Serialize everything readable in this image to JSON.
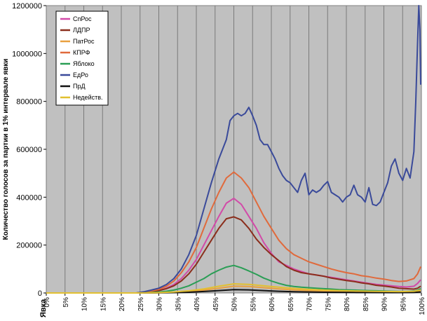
{
  "chart_data": {
    "type": "line",
    "ylabel": "Количество голосов за партии в 1% интервале явки",
    "xlabel": "Явка",
    "ylim": [
      0,
      1200000
    ],
    "xlim": [
      0,
      100
    ],
    "y_ticks": [
      "0",
      "200000",
      "400000",
      "600000",
      "800000",
      "1000000",
      "1200000"
    ],
    "x_ticks": [
      "0%",
      "5%",
      "10%",
      "15%",
      "20%",
      "25%",
      "30%",
      "35%",
      "40%",
      "45%",
      "50%",
      "55%",
      "60%",
      "65%",
      "70%",
      "75%",
      "80%",
      "85%",
      "90%",
      "95%",
      "100%"
    ],
    "grid": "vertical",
    "legend_position": "top-left",
    "series": [
      {
        "name": "СпРос",
        "color": "#d24aa8",
        "x": [
          0,
          24,
          26,
          28,
          30,
          32,
          34,
          36,
          38,
          40,
          42,
          44,
          46,
          48,
          50,
          52,
          54,
          56,
          58,
          60,
          62,
          64,
          66,
          68,
          70,
          72,
          74,
          76,
          78,
          80,
          82,
          84,
          86,
          88,
          90,
          92,
          94,
          96,
          98,
          99,
          100
        ],
        "y": [
          0,
          0,
          2000,
          5000,
          10000,
          20000,
          35000,
          60000,
          95000,
          140000,
          200000,
          260000,
          320000,
          375000,
          395000,
          370000,
          320000,
          270000,
          210000,
          165000,
          130000,
          115000,
          100000,
          90000,
          80000,
          75000,
          70000,
          65000,
          60000,
          55000,
          50000,
          45000,
          40000,
          36000,
          33000,
          30000,
          27000,
          25000,
          28000,
          40000,
          55000
        ]
      },
      {
        "name": "ЛДПР",
        "color": "#8b2e1c",
        "x": [
          0,
          24,
          26,
          28,
          30,
          32,
          34,
          36,
          38,
          40,
          42,
          44,
          46,
          48,
          50,
          52,
          54,
          56,
          58,
          60,
          62,
          64,
          66,
          68,
          70,
          72,
          74,
          76,
          78,
          80,
          82,
          84,
          86,
          88,
          90,
          92,
          94,
          96,
          98,
          99,
          100
        ],
        "y": [
          0,
          0,
          2000,
          5000,
          10000,
          18000,
          30000,
          50000,
          80000,
          120000,
          170000,
          220000,
          270000,
          310000,
          318000,
          305000,
          270000,
          225000,
          190000,
          160000,
          135000,
          110000,
          95000,
          85000,
          80000,
          75000,
          70000,
          62000,
          57000,
          52000,
          48000,
          42000,
          38000,
          32000,
          29000,
          25000,
          20000,
          18000,
          16000,
          20000,
          28000
        ]
      },
      {
        "name": "ПатРос",
        "color": "#e9a040",
        "x": [
          0,
          24,
          30,
          34,
          38,
          42,
          46,
          50,
          54,
          58,
          62,
          66,
          70,
          74,
          78,
          82,
          86,
          90,
          94,
          98,
          100
        ],
        "y": [
          0,
          0,
          1000,
          3000,
          6000,
          12000,
          20000,
          28000,
          27000,
          22000,
          17000,
          13000,
          10000,
          8000,
          6500,
          5000,
          4000,
          3500,
          3000,
          4000,
          8000
        ]
      },
      {
        "name": "КПРФ",
        "color": "#e06a3c",
        "x": [
          0,
          24,
          26,
          28,
          30,
          32,
          34,
          36,
          38,
          40,
          42,
          44,
          46,
          48,
          50,
          52,
          54,
          56,
          58,
          60,
          62,
          64,
          66,
          68,
          70,
          72,
          74,
          76,
          78,
          80,
          82,
          84,
          86,
          88,
          90,
          92,
          94,
          96,
          98,
          99,
          100
        ],
        "y": [
          0,
          0,
          3000,
          8000,
          15000,
          28000,
          50000,
          85000,
          130000,
          190000,
          270000,
          350000,
          420000,
          480000,
          505000,
          480000,
          440000,
          380000,
          320000,
          270000,
          220000,
          185000,
          160000,
          145000,
          130000,
          120000,
          110000,
          100000,
          92000,
          85000,
          80000,
          72000,
          68000,
          62000,
          58000,
          52000,
          48000,
          50000,
          60000,
          80000,
          110000
        ]
      },
      {
        "name": "Яблоко",
        "color": "#2a9e55",
        "x": [
          0,
          24,
          26,
          28,
          30,
          32,
          34,
          36,
          38,
          40,
          42,
          44,
          46,
          48,
          50,
          52,
          54,
          56,
          58,
          60,
          62,
          64,
          66,
          68,
          70,
          72,
          74,
          76,
          78,
          80,
          82,
          84,
          86,
          88,
          90,
          92,
          94,
          96,
          98,
          99,
          100
        ],
        "y": [
          0,
          0,
          1000,
          2000,
          4000,
          7000,
          12000,
          20000,
          30000,
          45000,
          60000,
          80000,
          95000,
          108000,
          115000,
          105000,
          92000,
          78000,
          62000,
          50000,
          40000,
          32000,
          27000,
          24000,
          22000,
          20000,
          18000,
          16000,
          14000,
          13000,
          12000,
          11000,
          10000,
          9000,
          8000,
          7000,
          6000,
          6000,
          8000,
          12000,
          18000
        ]
      },
      {
        "name": "ЕдРо",
        "color": "#3a4a9a",
        "x": [
          0,
          24,
          26,
          28,
          30,
          32,
          34,
          36,
          38,
          40,
          42,
          44,
          46,
          48,
          49,
          50,
          51,
          52,
          53,
          54,
          55,
          56,
          57,
          58,
          59,
          60,
          61,
          62,
          63,
          64,
          65,
          66,
          67,
          68,
          69,
          70,
          71,
          72,
          73,
          74,
          75,
          76,
          77,
          78,
          79,
          80,
          81,
          82,
          83,
          84,
          85,
          86,
          87,
          88,
          89,
          90,
          91,
          92,
          93,
          94,
          95,
          96,
          97,
          98,
          98.5,
          99,
          99.3,
          99.6,
          100
        ],
        "y": [
          0,
          0,
          5000,
          12000,
          20000,
          35000,
          60000,
          100000,
          160000,
          240000,
          350000,
          460000,
          560000,
          640000,
          720000,
          740000,
          750000,
          740000,
          750000,
          775000,
          740000,
          700000,
          640000,
          620000,
          620000,
          590000,
          560000,
          520000,
          490000,
          470000,
          460000,
          440000,
          420000,
          470000,
          500000,
          410000,
          430000,
          420000,
          430000,
          450000,
          465000,
          420000,
          410000,
          400000,
          380000,
          400000,
          410000,
          450000,
          410000,
          400000,
          380000,
          440000,
          370000,
          365000,
          380000,
          420000,
          460000,
          530000,
          560000,
          500000,
          470000,
          520000,
          480000,
          590000,
          800000,
          1050000,
          1200000,
          1100000,
          870000
        ]
      },
      {
        "name": "ПрД",
        "color": "#111111",
        "x": [
          0,
          24,
          30,
          34,
          38,
          42,
          46,
          50,
          54,
          58,
          62,
          66,
          70,
          74,
          78,
          82,
          86,
          90,
          94,
          98,
          100
        ],
        "y": [
          0,
          0,
          500,
          1500,
          3000,
          6000,
          10000,
          14000,
          13000,
          10000,
          7000,
          5000,
          4000,
          3000,
          2500,
          2000,
          1800,
          1500,
          1400,
          2000,
          4000
        ]
      },
      {
        "name": "Недейств.",
        "color": "#e2c030",
        "x": [
          0,
          24,
          30,
          34,
          38,
          42,
          46,
          50,
          54,
          58,
          62,
          66,
          70,
          74,
          78,
          82,
          86,
          90,
          94,
          98,
          100
        ],
        "y": [
          0,
          0,
          1500,
          4000,
          9000,
          17000,
          28000,
          38000,
          36000,
          30000,
          24000,
          19000,
          15000,
          12000,
          10000,
          8500,
          7000,
          6000,
          5500,
          7000,
          12000
        ]
      }
    ]
  }
}
